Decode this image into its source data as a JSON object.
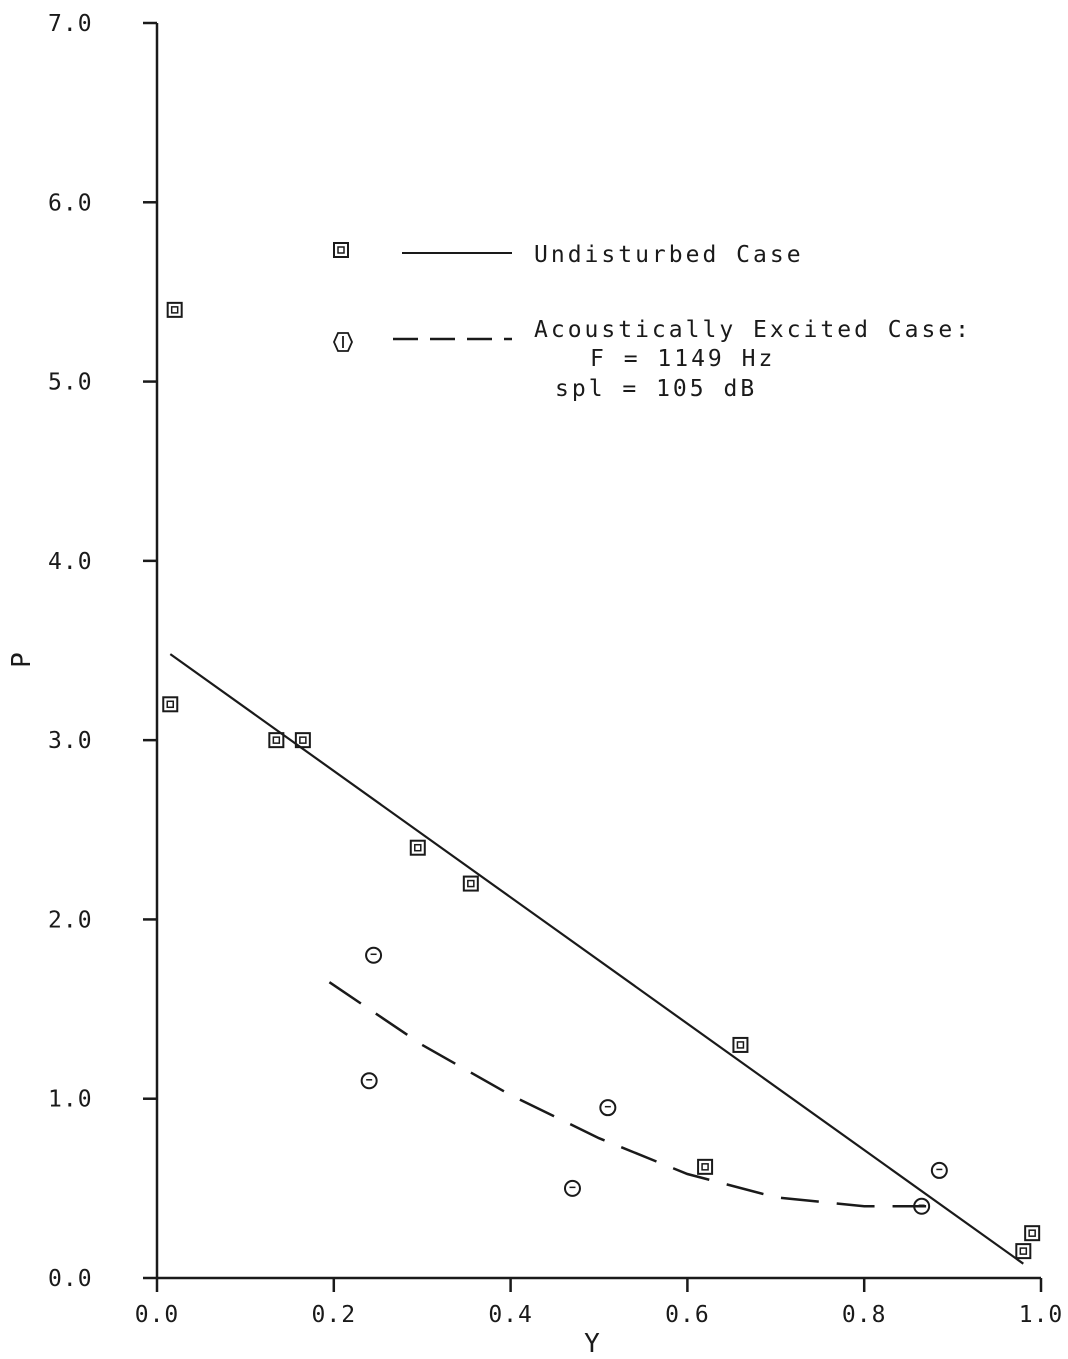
{
  "chart_data": {
    "type": "scatter",
    "title": "",
    "xlabel": "Y",
    "ylabel": "P",
    "xlim": [
      0.0,
      1.0
    ],
    "ylim": [
      0.0,
      7.0
    ],
    "x_ticks": [
      "0.0",
      "0.2",
      "0.4",
      "0.6",
      "0.8",
      "1.0"
    ],
    "y_ticks": [
      "0.0",
      "1.0",
      "2.0",
      "3.0",
      "4.0",
      "5.0",
      "6.0",
      "7.0"
    ],
    "grid": false,
    "legend": {
      "placement": "top-center",
      "entries": [
        {
          "marker": "square",
          "line": "solid",
          "label": "Undisturbed Case"
        },
        {
          "marker": "circle",
          "line": "dashed",
          "label": "Acoustically Excited Case:",
          "details": [
            "F = 1149 Hz",
            "spl = 105 dB"
          ]
        }
      ]
    },
    "series": [
      {
        "marker": "square",
        "points": [
          [
            0.02,
            5.4
          ],
          [
            0.015,
            3.2
          ],
          [
            0.135,
            3.0
          ],
          [
            0.165,
            3.0
          ],
          [
            0.295,
            2.4
          ],
          [
            0.355,
            2.2
          ],
          [
            0.66,
            1.3
          ],
          [
            0.62,
            0.62
          ],
          [
            0.98,
            0.15
          ],
          [
            0.99,
            0.25
          ]
        ],
        "fit": {
          "line": "solid",
          "points": [
            [
              0.015,
              3.48
            ],
            [
              0.98,
              0.08
            ]
          ]
        }
      },
      {
        "marker": "circle",
        "points": [
          [
            0.245,
            1.8
          ],
          [
            0.24,
            1.1
          ],
          [
            0.51,
            0.95
          ],
          [
            0.47,
            0.5
          ],
          [
            0.865,
            0.4
          ],
          [
            0.885,
            0.6
          ]
        ],
        "fit": {
          "line": "dashed",
          "points": [
            [
              0.195,
              1.65
            ],
            [
              0.3,
              1.3
            ],
            [
              0.4,
              1.02
            ],
            [
              0.5,
              0.78
            ],
            [
              0.6,
              0.58
            ],
            [
              0.7,
              0.45
            ],
            [
              0.8,
              0.4
            ],
            [
              0.87,
              0.4
            ]
          ]
        }
      }
    ]
  }
}
